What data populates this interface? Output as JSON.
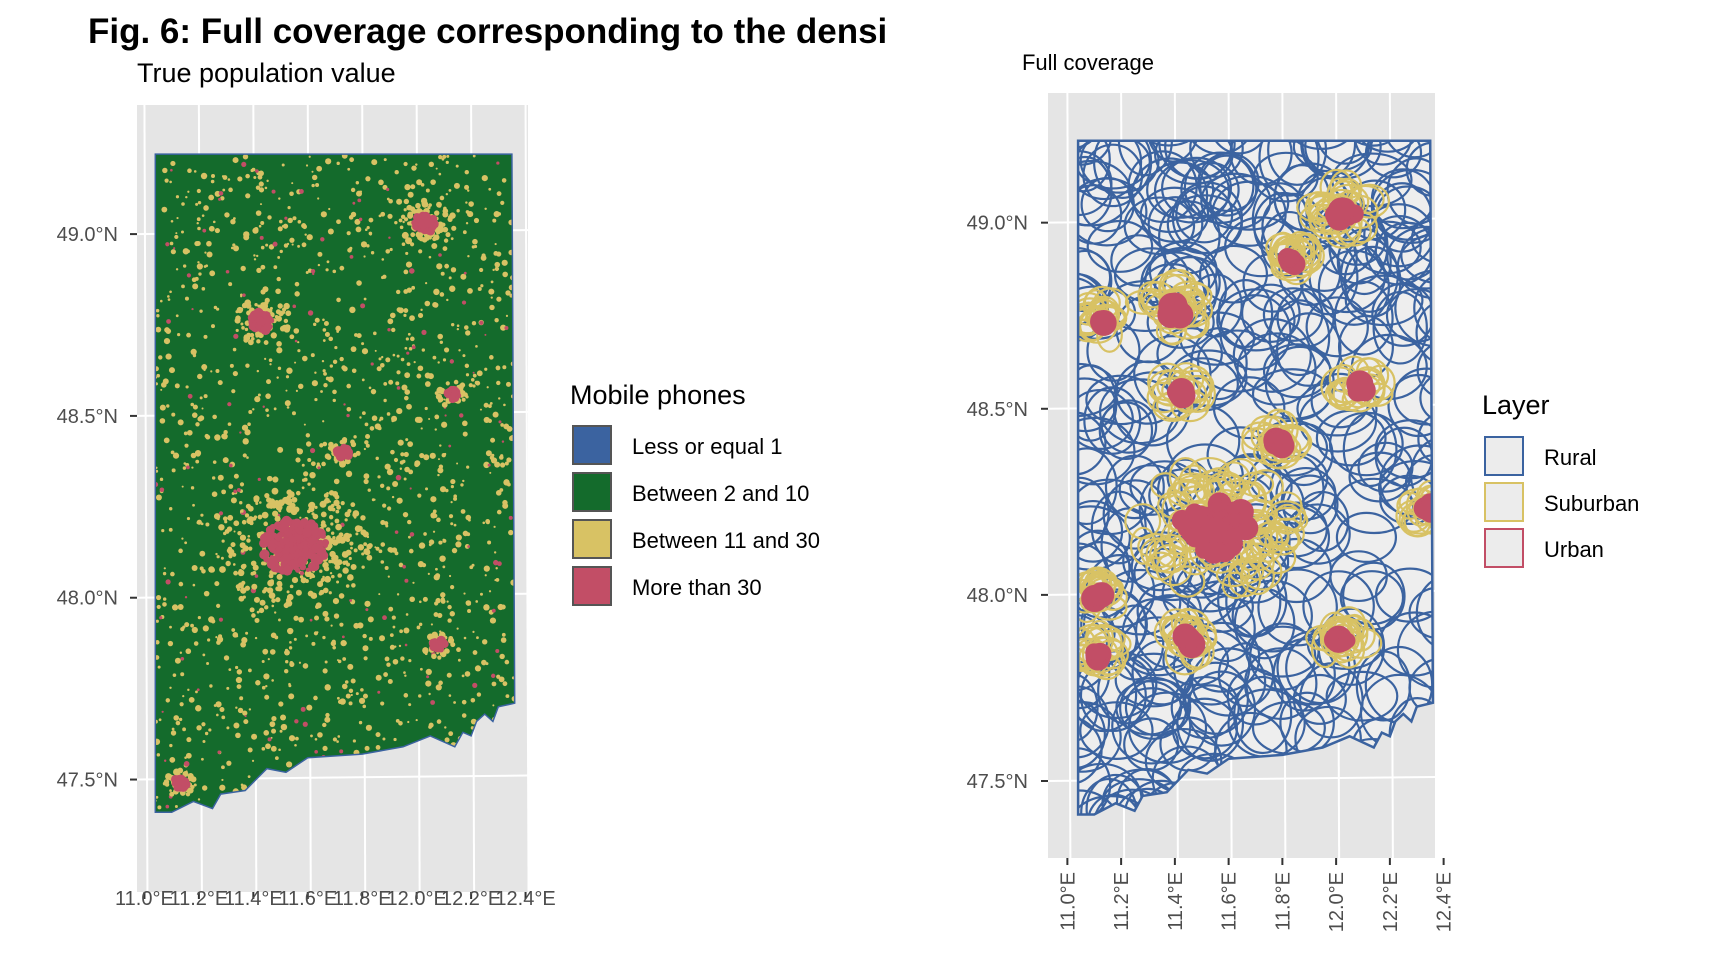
{
  "title": "Fig. 6: Full coverage corresponding to the densi",
  "colors": {
    "panel_bg": "#e5e5e5",
    "grid": "#ffffff",
    "rural": "#3b63a0",
    "between_2_10": "#146b2c",
    "suburban": "#d8c264",
    "urban": "#c24e66",
    "axis_text": "#4d4d4d"
  },
  "chart_data": [
    {
      "type": "map",
      "subtitle": "True population value",
      "y_ticks": [
        {
          "value": 49.0,
          "label": "49.0°N"
        },
        {
          "value": 48.5,
          "label": "48.5°N"
        },
        {
          "value": 48.0,
          "label": "48.0°N"
        },
        {
          "value": 47.5,
          "label": "47.5°N"
        }
      ],
      "x_ticks": [
        {
          "value": 11.0,
          "label": "11.0°E"
        },
        {
          "value": 11.2,
          "label": "11.2°E"
        },
        {
          "value": 11.4,
          "label": "11.4°E"
        },
        {
          "value": 11.6,
          "label": "11.6°E"
        },
        {
          "value": 11.8,
          "label": "11.8°E"
        },
        {
          "value": 12.0,
          "label": "12.0°E"
        },
        {
          "value": 12.2,
          "label": "12.2°E"
        },
        {
          "value": 12.4,
          "label": "12.4°E"
        }
      ],
      "xlim": [
        10.98,
        12.42
      ],
      "ylim": [
        47.32,
        49.3
      ],
      "legend": {
        "title": "Mobile phones",
        "position": "right",
        "items": [
          {
            "label": "Less or equal 1",
            "color": "#3b63a0"
          },
          {
            "label": "Between 2 and 10",
            "color": "#146b2c"
          },
          {
            "label": "Between 11 and 30",
            "color": "#d8c264"
          },
          {
            "label": "More than 30",
            "color": "#c24e66"
          }
        ]
      },
      "urban_centers": [
        {
          "lon": 11.55,
          "lat": 48.14,
          "size": "large"
        },
        {
          "lon": 12.03,
          "lat": 49.03,
          "size": "medium"
        },
        {
          "lon": 11.43,
          "lat": 48.76,
          "size": "medium"
        },
        {
          "lon": 12.13,
          "lat": 48.56,
          "size": "small"
        },
        {
          "lon": 12.08,
          "lat": 47.87,
          "size": "small"
        },
        {
          "lon": 11.73,
          "lat": 48.4,
          "size": "small"
        },
        {
          "lon": 11.13,
          "lat": 47.49,
          "size": "small"
        }
      ]
    },
    {
      "type": "map",
      "subtitle": "Full coverage",
      "y_ticks": [
        {
          "value": 49.0,
          "label": "49.0°N"
        },
        {
          "value": 48.5,
          "label": "48.5°N"
        },
        {
          "value": 48.0,
          "label": "48.0°N"
        },
        {
          "value": 47.5,
          "label": "47.5°N"
        }
      ],
      "x_ticks": [
        {
          "value": 11.0,
          "label": "11.0°E"
        },
        {
          "value": 11.2,
          "label": "11.2°E"
        },
        {
          "value": 11.4,
          "label": "11.4°E"
        },
        {
          "value": 11.6,
          "label": "11.6°E"
        },
        {
          "value": 11.8,
          "label": "11.8°E"
        },
        {
          "value": 12.0,
          "label": "12.0°E"
        },
        {
          "value": 12.2,
          "label": "12.2°E"
        },
        {
          "value": 12.4,
          "label": "12.4°E"
        }
      ],
      "xlim": [
        10.98,
        12.42
      ],
      "ylim": [
        47.32,
        49.3
      ],
      "legend": {
        "title": "Layer",
        "position": "right",
        "items": [
          {
            "label": "Rural",
            "color": "#3b63a0"
          },
          {
            "label": "Suburban",
            "color": "#d8c264"
          },
          {
            "label": "Urban",
            "color": "#c24e66"
          }
        ]
      },
      "urban_centers": [
        {
          "lon": 11.55,
          "lat": 48.18,
          "size": "large"
        },
        {
          "lon": 12.03,
          "lat": 49.03,
          "size": "medium"
        },
        {
          "lon": 11.83,
          "lat": 48.9,
          "size": "small"
        },
        {
          "lon": 11.4,
          "lat": 48.77,
          "size": "medium"
        },
        {
          "lon": 11.13,
          "lat": 48.74,
          "size": "small"
        },
        {
          "lon": 11.42,
          "lat": 48.54,
          "size": "small"
        },
        {
          "lon": 12.09,
          "lat": 48.56,
          "size": "small"
        },
        {
          "lon": 11.78,
          "lat": 48.41,
          "size": "small"
        },
        {
          "lon": 12.35,
          "lat": 48.23,
          "size": "small"
        },
        {
          "lon": 11.12,
          "lat": 48.0,
          "size": "small"
        },
        {
          "lon": 11.45,
          "lat": 47.88,
          "size": "small"
        },
        {
          "lon": 12.02,
          "lat": 47.88,
          "size": "small"
        },
        {
          "lon": 11.12,
          "lat": 47.84,
          "size": "small"
        }
      ]
    }
  ]
}
